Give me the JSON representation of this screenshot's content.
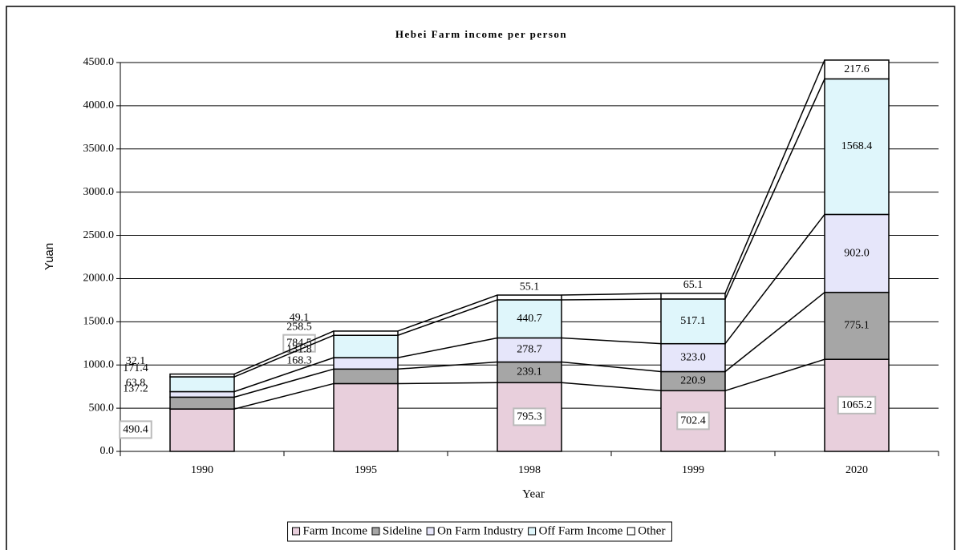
{
  "chart_data": {
    "type": "stacked_bar",
    "title": "Hebei  Farm income per person",
    "x_label": "Year",
    "y_label": "Yuan",
    "categories": [
      "1990",
      "1995",
      "1998",
      "1999",
      "2020"
    ],
    "series": [
      {
        "name": "Farm Income",
        "color": "#e8cfdc",
        "values": [
          490.4,
          784.5,
          795.3,
          702.4,
          1065.2
        ]
      },
      {
        "name": "Sideline",
        "color": "#a6a6a6",
        "values": [
          137.2,
          168.3,
          239.1,
          220.9,
          775.1
        ]
      },
      {
        "name": "On Farm Industry",
        "color": "#e6e6fa",
        "values": [
          63.8,
          131.8,
          278.7,
          323.0,
          902.0
        ],
        "value_labels": [
          "63.8",
          "131.8",
          "278.7",
          "323.0",
          "902.0"
        ]
      },
      {
        "name": "Off Farm Income",
        "color": "#dff6fb",
        "values": [
          171.4,
          258.5,
          440.7,
          517.1,
          1568.4
        ]
      },
      {
        "name": "Other",
        "color": "#ffffff",
        "values": [
          32.1,
          49.1,
          55.1,
          65.1,
          217.6
        ]
      }
    ],
    "ylim": [
      0,
      4500
    ],
    "yticks": [
      {
        "value": 0,
        "label": "0.0"
      },
      {
        "value": 500,
        "label": "500.0"
      },
      {
        "value": 1000,
        "label": "1000.0"
      },
      {
        "value": 1500,
        "label": "1500.0"
      },
      {
        "value": 2000,
        "label": "2000.0"
      },
      {
        "value": 2500,
        "label": "2500.0"
      },
      {
        "value": 3000,
        "label": "3000.0"
      },
      {
        "value": 3500,
        "label": "3500.0"
      },
      {
        "value": 4000,
        "label": "4000.0"
      },
      {
        "value": 4500,
        "label": "4500.0"
      }
    ],
    "grid": true,
    "legend": "bottom"
  }
}
